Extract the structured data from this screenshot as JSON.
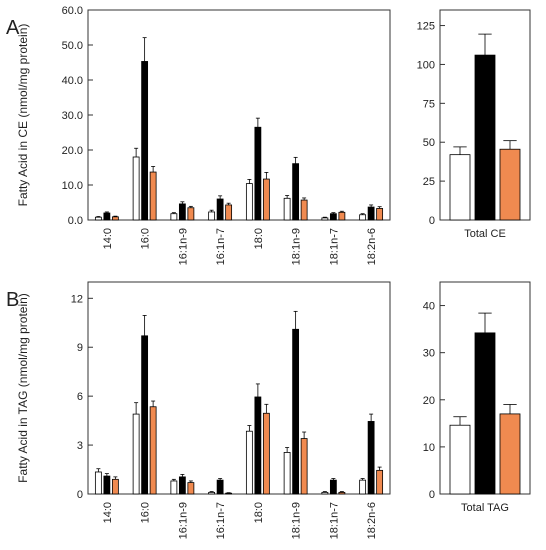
{
  "panels": [
    {
      "letter": "A"
    },
    {
      "letter": "B"
    }
  ],
  "chart_data": [
    {
      "type": "bar",
      "ylabel": "Fatty Acid in CE (nmol/mg protein)",
      "categories": [
        "14:0",
        "16:0",
        "16:1n-9",
        "16:1n-7",
        "18:0",
        "18:1n-9",
        "18:1n-7",
        "18:2n-6"
      ],
      "ylim": [
        0,
        60
      ],
      "yticks": [
        0,
        10,
        20,
        30,
        40,
        50,
        60
      ],
      "grid": false,
      "series": [
        {
          "color": "#ffffff",
          "values": [
            0.8,
            18.0,
            1.8,
            2.3,
            10.4,
            6.2,
            0.6,
            1.5
          ],
          "errors": [
            0.2,
            2.5,
            0.3,
            0.5,
            1.2,
            0.8,
            0.2,
            0.3
          ]
        },
        {
          "color": "#000000",
          "values": [
            2.0,
            45.3,
            4.6,
            6.0,
            26.5,
            16.1,
            1.8,
            3.7
          ],
          "errors": [
            0.3,
            6.8,
            0.6,
            0.9,
            2.6,
            1.8,
            0.3,
            0.6
          ]
        },
        {
          "color": "#f08a50",
          "values": [
            0.9,
            13.7,
            3.5,
            4.3,
            11.7,
            5.7,
            2.2,
            3.3
          ],
          "errors": [
            0.2,
            1.6,
            0.4,
            0.5,
            1.9,
            0.6,
            0.3,
            0.5
          ]
        }
      ]
    },
    {
      "type": "bar",
      "categories": [
        "Total CE"
      ],
      "ylim": [
        0,
        135
      ],
      "yticks": [
        0,
        25,
        50,
        75,
        100,
        125
      ],
      "series": [
        {
          "color": "#ffffff",
          "values": [
            42.0
          ],
          "errors": [
            5.0
          ]
        },
        {
          "color": "#000000",
          "values": [
            106.0
          ],
          "errors": [
            13.5
          ]
        },
        {
          "color": "#f08a50",
          "values": [
            45.5
          ],
          "errors": [
            5.5
          ]
        }
      ]
    },
    {
      "type": "bar",
      "ylabel": "Fatty Acid in TAG (nmol/mg protein)",
      "categories": [
        "14:0",
        "16:0",
        "16:1n-9",
        "16:1n-7",
        "18:0",
        "18:1n-9",
        "18:1n-7",
        "18:2n-6"
      ],
      "ylim": [
        0,
        13
      ],
      "yticks": [
        0,
        3,
        6,
        9,
        12
      ],
      "grid": false,
      "series": [
        {
          "color": "#ffffff",
          "values": [
            1.35,
            4.9,
            0.8,
            0.1,
            3.85,
            2.55,
            0.1,
            0.85
          ],
          "errors": [
            0.2,
            0.7,
            0.1,
            0.05,
            0.35,
            0.3,
            0.05,
            0.1
          ]
        },
        {
          "color": "#000000",
          "values": [
            1.1,
            9.7,
            1.05,
            0.85,
            5.95,
            10.1,
            0.85,
            4.45
          ],
          "errors": [
            0.15,
            1.25,
            0.15,
            0.1,
            0.8,
            1.1,
            0.1,
            0.45
          ]
        },
        {
          "color": "#f08a50",
          "values": [
            0.9,
            5.35,
            0.7,
            0.05,
            4.95,
            3.4,
            0.1,
            1.45
          ],
          "errors": [
            0.15,
            0.35,
            0.1,
            0.03,
            0.55,
            0.4,
            0.05,
            0.2
          ]
        }
      ]
    },
    {
      "type": "bar",
      "categories": [
        "Total TAG"
      ],
      "ylim": [
        0,
        45
      ],
      "yticks": [
        0,
        10,
        20,
        30,
        40
      ],
      "series": [
        {
          "color": "#ffffff",
          "values": [
            14.6
          ],
          "errors": [
            1.8
          ]
        },
        {
          "color": "#000000",
          "values": [
            34.2
          ],
          "errors": [
            4.2
          ]
        },
        {
          "color": "#f08a50",
          "values": [
            17.0
          ],
          "errors": [
            2.0
          ]
        }
      ]
    }
  ]
}
